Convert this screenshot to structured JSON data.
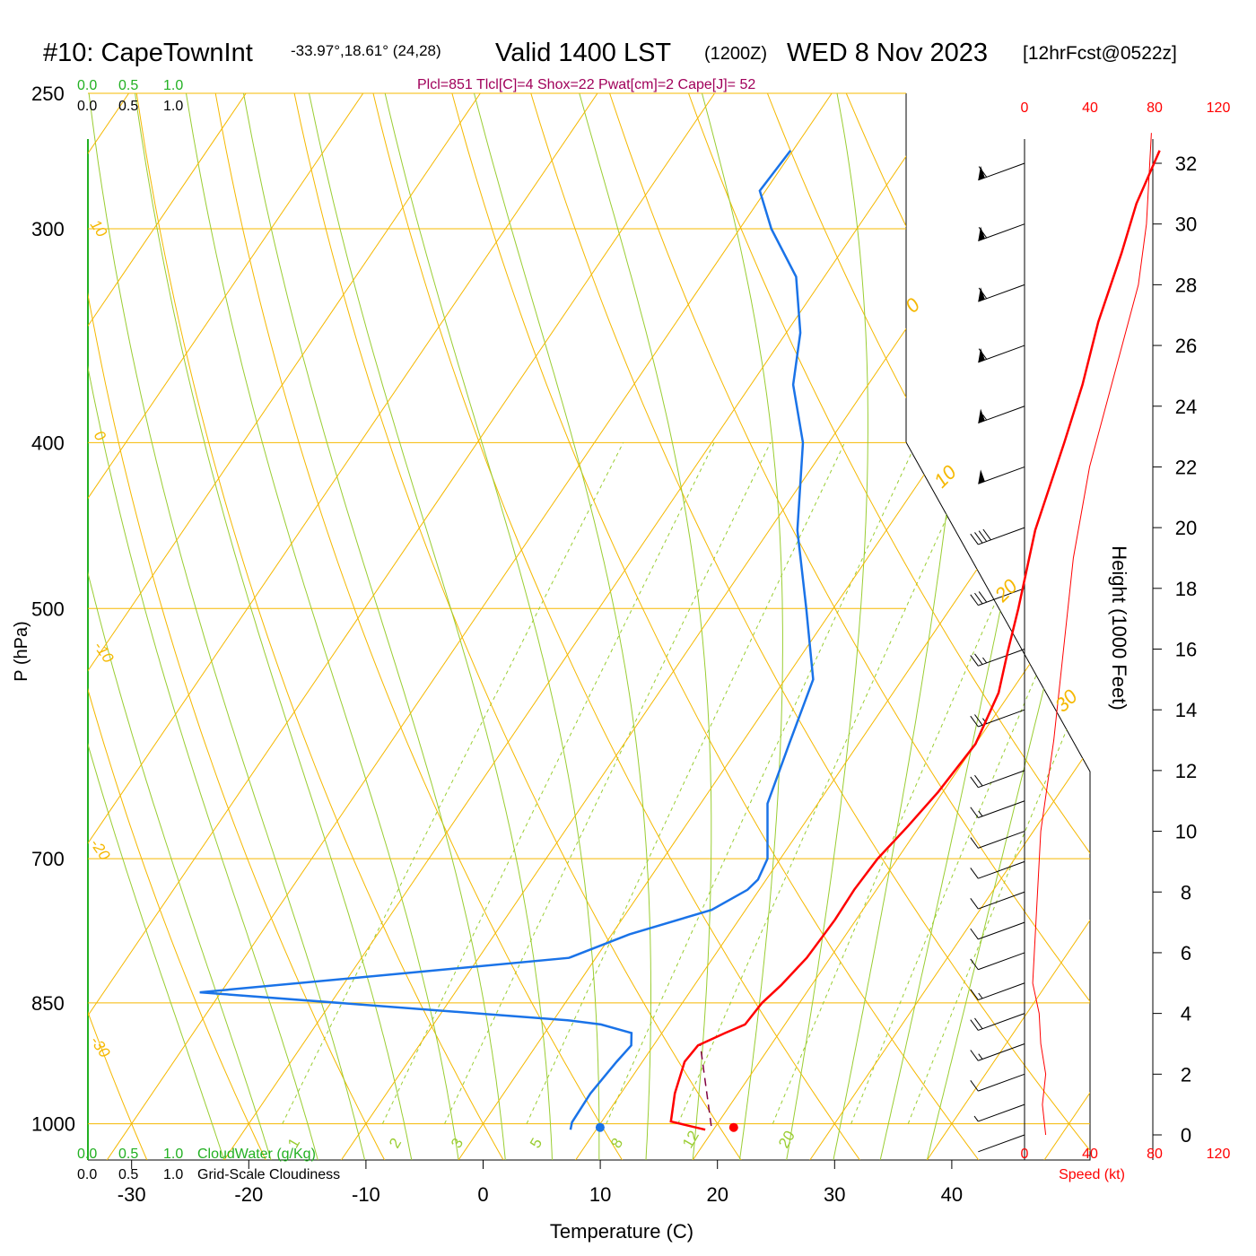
{
  "header": {
    "station": "#10: CapeTownInt",
    "coords": "-33.97°,18.61° (24,28)",
    "valid_prefix": "Valid 1400 LST",
    "zulu": "(1200Z)",
    "date": "WED 8 Nov 2023",
    "forecast": "[12hrFcst@0522z]",
    "indices": "Plcl=851 Tlcl[C]=4 Shox=22 Pwat[cm]=2 Cape[J]= 52"
  },
  "cloud_scale": {
    "top_green": [
      "0.0",
      "0.5",
      "1.0"
    ],
    "top_black": [
      "0.0",
      "0.5",
      "1.0"
    ],
    "bottom_green": [
      "0.0",
      "0.5",
      "1.0"
    ],
    "bottom_green_label": "CloudWater (g/Kg)",
    "bottom_black": [
      "0.0",
      "0.5",
      "1.0"
    ],
    "bottom_black_label": "Grid-Scale Cloudiness"
  },
  "chart_data": {
    "type": "line",
    "xlabel": "Temperature (C)",
    "ylabel": "P (hPa)",
    "y2label": "Height (1000 Feet)",
    "x_ticks": [
      "-30",
      "-20",
      "-10",
      "0",
      "10",
      "20",
      "30",
      "40"
    ],
    "p_ticks": [
      "250",
      "300",
      "400",
      "500",
      "700",
      "850",
      "1000"
    ],
    "height_ticks": [
      "0",
      "2",
      "4",
      "6",
      "8",
      "10",
      "12",
      "14",
      "16",
      "18",
      "20",
      "22",
      "24",
      "26",
      "28",
      "30",
      "32"
    ],
    "speed_ticks_top": [
      "0",
      "40",
      "80",
      "120"
    ],
    "speed_ticks_bottom": [
      "0",
      "40",
      "80",
      "120"
    ],
    "speed_label": "Speed (kt)",
    "isotherm_labels": [
      "10",
      "0",
      "-10",
      "-20",
      "-30"
    ],
    "isotherm_labels_right": [
      "0",
      "10",
      "20",
      "30"
    ],
    "mixing_ratio_labels": [
      "1",
      "2",
      "3",
      "5",
      "8",
      "12",
      "20"
    ],
    "series": [
      {
        "name": "",
        "color": "#ff0000",
        "points": [
          [
            19.3,
            1008
          ],
          [
            15.9,
            997
          ],
          [
            14.6,
            960
          ],
          [
            13.6,
            920
          ],
          [
            13.8,
            900
          ],
          [
            15.4,
            885
          ],
          [
            16.6,
            875
          ],
          [
            16.8,
            850
          ],
          [
            17.4,
            830
          ],
          [
            18.0,
            800
          ],
          [
            18.2,
            760
          ],
          [
            18.1,
            730
          ],
          [
            18.3,
            700
          ],
          [
            19.0,
            670
          ],
          [
            19.6,
            640
          ],
          [
            20.0,
            600
          ],
          [
            19.0,
            560
          ],
          [
            17.4,
            530
          ],
          [
            15.8,
            500
          ],
          [
            12.7,
            450
          ],
          [
            10.1,
            400
          ],
          [
            8.3,
            370
          ],
          [
            6.0,
            340
          ],
          [
            4.0,
            310
          ],
          [
            2.4,
            290
          ],
          [
            1.3,
            270
          ]
        ]
      },
      {
        "name": "",
        "color": "#1a73e8",
        "points": [
          [
            7.8,
            1008
          ],
          [
            7.5,
            998
          ],
          [
            7.4,
            960
          ],
          [
            7.8,
            920
          ],
          [
            8.1,
            900
          ],
          [
            7.4,
            885
          ],
          [
            4.3,
            875
          ],
          [
            1.2,
            870
          ],
          [
            -31.8,
            838
          ],
          [
            -2.3,
            800
          ],
          [
            1.5,
            775
          ],
          [
            7.1,
            750
          ],
          [
            9.0,
            730
          ],
          [
            9.3,
            720
          ],
          [
            8.9,
            700
          ],
          [
            5.7,
            650
          ],
          [
            4.1,
            600
          ],
          [
            2.4,
            550
          ],
          [
            -2.3,
            500
          ],
          [
            -7.6,
            450
          ],
          [
            -12.2,
            400
          ],
          [
            -16.4,
            370
          ],
          [
            -18.8,
            345
          ],
          [
            -22.4,
            320
          ],
          [
            -27.3,
            300
          ],
          [
            -30.5,
            285
          ],
          [
            -30.2,
            270
          ]
        ]
      }
    ],
    "parcel_path": [
      [
        19.6,
        1003
      ],
      [
        14.0,
        900
      ]
    ],
    "surface_temp_point": [
      21.6,
      1005
    ],
    "surface_dew_point": [
      10.2,
      1005
    ],
    "wind_speed_profile": [
      [
        13,
        0
      ],
      [
        11,
        1
      ],
      [
        13,
        2
      ],
      [
        10,
        3
      ],
      [
        9,
        4
      ],
      [
        5,
        5
      ],
      [
        6,
        6
      ],
      [
        8,
        8
      ],
      [
        10,
        10
      ],
      [
        18,
        13
      ],
      [
        24,
        16
      ],
      [
        30,
        19
      ],
      [
        40,
        22
      ],
      [
        55,
        25
      ],
      [
        70,
        28
      ],
      [
        75,
        30
      ],
      [
        78,
        33
      ]
    ],
    "wind_barbs_kt": [
      [
        0,
        2
      ],
      [
        1,
        5
      ],
      [
        2,
        10
      ],
      [
        3,
        15
      ],
      [
        4,
        20
      ],
      [
        5,
        15
      ],
      [
        6,
        10
      ],
      [
        7,
        10
      ],
      [
        8,
        10
      ],
      [
        9,
        10
      ],
      [
        10,
        10
      ],
      [
        11,
        15
      ],
      [
        12,
        20
      ],
      [
        14,
        25
      ],
      [
        16,
        25
      ],
      [
        18,
        30
      ],
      [
        20,
        40
      ],
      [
        22,
        50
      ],
      [
        24,
        55
      ],
      [
        26,
        60
      ],
      [
        28,
        60
      ],
      [
        30,
        60
      ],
      [
        32,
        60
      ]
    ]
  }
}
